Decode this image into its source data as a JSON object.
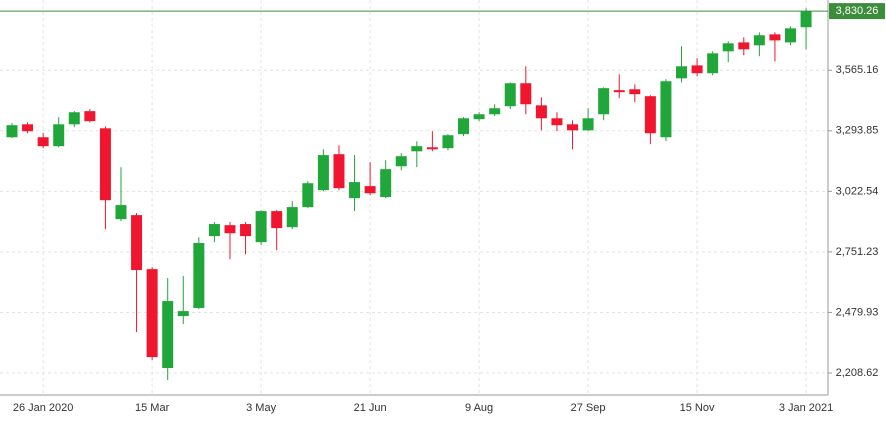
{
  "chart_data": {
    "type": "candlestick",
    "categories": [
      null,
      null,
      "26 Jan 2020",
      null,
      null,
      null,
      null,
      null,
      null,
      "15 Mar",
      null,
      null,
      null,
      null,
      null,
      null,
      "3 May",
      null,
      null,
      null,
      null,
      null,
      null,
      "21 Jun",
      null,
      null,
      null,
      null,
      null,
      null,
      "9 Aug",
      null,
      null,
      null,
      null,
      null,
      null,
      "27 Sep",
      null,
      null,
      null,
      null,
      null,
      null,
      "15 Nov",
      null,
      null,
      null,
      null,
      null,
      null,
      "3 Jan 2021"
    ],
    "open": [
      3265,
      3323,
      3265,
      3225,
      3323,
      3382,
      3305,
      2898,
      2916,
      2674,
      2231,
      2464,
      2500,
      2822,
      2871,
      2876,
      2795,
      2934,
      2862,
      2952,
      3028,
      3189,
      2992,
      3046,
      2997,
      3135,
      3202,
      3220,
      3216,
      3279,
      3346,
      3368,
      3404,
      3507,
      3408,
      3350,
      3323,
      3296,
      3368,
      3476,
      3480,
      3449,
      3265,
      3529,
      3587,
      3552,
      3650,
      3690,
      3677,
      3726,
      3690,
      3758
    ],
    "high": [
      3328,
      3332,
      3283,
      3355,
      3382,
      3391,
      3314,
      3131,
      2925,
      2683,
      2634,
      2643,
      2817,
      2885,
      2885,
      2885,
      2938,
      2938,
      2979,
      3068,
      3211,
      3229,
      3185,
      3153,
      3162,
      3194,
      3247,
      3292,
      3279,
      3355,
      3377,
      3413,
      3511,
      3583,
      3444,
      3377,
      3341,
      3395,
      3489,
      3547,
      3502,
      3453,
      3525,
      3673,
      3619,
      3650,
      3695,
      3713,
      3735,
      3735,
      3762,
      3843
    ],
    "low": [
      3261,
      3283,
      3216,
      3220,
      3310,
      3332,
      2853,
      2889,
      2392,
      2267,
      2177,
      2428,
      2495,
      2795,
      2719,
      2741,
      2782,
      2759,
      2853,
      2947,
      3023,
      3028,
      2934,
      3005,
      2992,
      3117,
      3131,
      3202,
      3207,
      3270,
      3337,
      3359,
      3391,
      3368,
      3296,
      3292,
      3211,
      3292,
      3341,
      3440,
      3422,
      3234,
      3247,
      3511,
      3538,
      3543,
      3601,
      3632,
      3628,
      3605,
      3677,
      3659
    ],
    "close": [
      3319,
      3292,
      3225,
      3323,
      3377,
      3337,
      2983,
      2961,
      2670,
      2280,
      2531,
      2486,
      2791,
      2876,
      2835,
      2822,
      2934,
      2858,
      2952,
      3059,
      3185,
      3037,
      3064,
      3014,
      3122,
      3180,
      3225,
      3211,
      3274,
      3350,
      3368,
      3395,
      3507,
      3413,
      3350,
      3319,
      3296,
      3350,
      3485,
      3467,
      3458,
      3283,
      3516,
      3583,
      3552,
      3641,
      3686,
      3659,
      3722,
      3699,
      3753,
      3830.26
    ],
    "up_color": "#21a63a",
    "down_color": "#f0162f",
    "ylim": [
      2110,
      3880
    ],
    "yticks": [
      {
        "value": 2208.62,
        "label": "2,208.62"
      },
      {
        "value": 2479.93,
        "label": "2,479.93"
      },
      {
        "value": 2751.23,
        "label": "2,751.23"
      },
      {
        "value": 3022.54,
        "label": "3,022.54"
      },
      {
        "value": 3293.85,
        "label": "3,293.85"
      },
      {
        "value": 3565.16,
        "label": "3,565.16"
      }
    ],
    "last_price": {
      "value": 3830.26,
      "label": "3,830.26"
    },
    "grid": true
  }
}
